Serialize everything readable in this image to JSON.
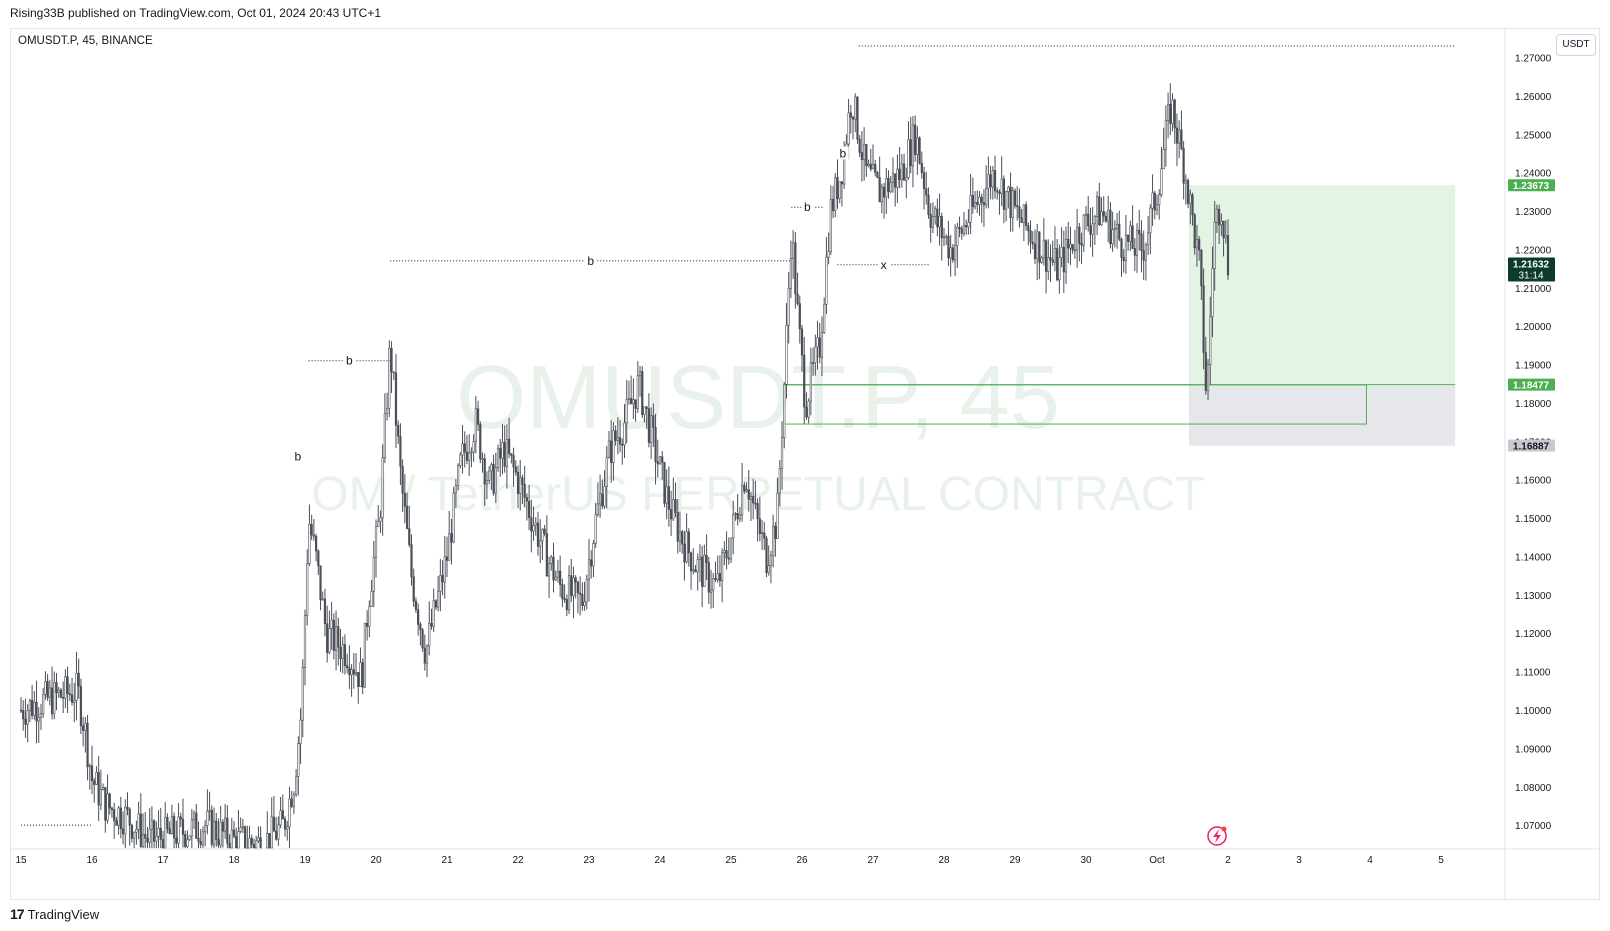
{
  "header": {
    "published": "Rising33B published on TradingView.com, Oct 01, 2024 20:43 UTC+1"
  },
  "symbol_line": "OMUSDT.P, 45, BINANCE",
  "currency_button": "USDT",
  "footer": {
    "logo_glyph": "17",
    "brand": "TradingView"
  },
  "watermark": {
    "line1": "OMUSDT.P, 45",
    "line2": "OM / TetherUS PERPETUAL CONTRACT"
  },
  "colors": {
    "candle": "#4a4e57",
    "grid_text": "#131722",
    "profit_zone": "#e4f4e4",
    "loss_zone": "#e6e7ea",
    "entry_line": "#4caf50",
    "price_badge": "#0d3b2a",
    "stop_badge": "#c7c9cd"
  },
  "chart_data": {
    "type": "candlestick",
    "title": "OMUSDT.P, 45, BINANCE",
    "x_tick_labels": [
      "15",
      "16",
      "17",
      "18",
      "19",
      "20",
      "21",
      "22",
      "23",
      "24",
      "25",
      "26",
      "27",
      "28",
      "29",
      "30",
      "Oct",
      "2",
      "3",
      "4",
      "5"
    ],
    "y_tick_labels": [
      "1.27000",
      "1.26000",
      "1.25000",
      "1.24000",
      "1.23000",
      "1.22000",
      "1.21000",
      "1.20000",
      "1.19000",
      "1.18000",
      "1.17000",
      "1.16000",
      "1.15000",
      "1.14000",
      "1.13000",
      "1.12000",
      "1.11000",
      "1.10000",
      "1.09000",
      "1.08000",
      "1.07000"
    ],
    "ylim": [
      1.063,
      1.273
    ],
    "grid": false,
    "price_path": [
      [
        15.0,
        1.1
      ],
      [
        15.4,
        1.103
      ],
      [
        15.8,
        1.105
      ],
      [
        15.9,
        1.095
      ],
      [
        16.0,
        1.082
      ],
      [
        16.2,
        1.075
      ],
      [
        16.5,
        1.072
      ],
      [
        16.8,
        1.066
      ],
      [
        17.2,
        1.068
      ],
      [
        17.6,
        1.07
      ],
      [
        18.0,
        1.066
      ],
      [
        18.4,
        1.065
      ],
      [
        18.7,
        1.07
      ],
      [
        18.85,
        1.082
      ],
      [
        18.95,
        1.1
      ],
      [
        19.05,
        1.15
      ],
      [
        19.15,
        1.14
      ],
      [
        19.3,
        1.12
      ],
      [
        19.6,
        1.115
      ],
      [
        19.8,
        1.108
      ],
      [
        19.9,
        1.13
      ],
      [
        20.05,
        1.15
      ],
      [
        20.2,
        1.195
      ],
      [
        20.35,
        1.16
      ],
      [
        20.5,
        1.135
      ],
      [
        20.7,
        1.115
      ],
      [
        21.0,
        1.14
      ],
      [
        21.2,
        1.165
      ],
      [
        21.4,
        1.175
      ],
      [
        21.6,
        1.158
      ],
      [
        21.8,
        1.168
      ],
      [
        22.0,
        1.16
      ],
      [
        22.2,
        1.15
      ],
      [
        22.4,
        1.14
      ],
      [
        22.6,
        1.132
      ],
      [
        22.9,
        1.128
      ],
      [
        23.1,
        1.15
      ],
      [
        23.3,
        1.168
      ],
      [
        23.5,
        1.175
      ],
      [
        23.7,
        1.185
      ],
      [
        23.9,
        1.17
      ],
      [
        24.1,
        1.155
      ],
      [
        24.3,
        1.145
      ],
      [
        24.5,
        1.138
      ],
      [
        24.8,
        1.132
      ],
      [
        25.0,
        1.145
      ],
      [
        25.2,
        1.162
      ],
      [
        25.35,
        1.15
      ],
      [
        25.5,
        1.14
      ],
      [
        25.65,
        1.15
      ],
      [
        25.75,
        1.185
      ],
      [
        25.85,
        1.225
      ],
      [
        25.95,
        1.2
      ],
      [
        26.05,
        1.18
      ],
      [
        26.25,
        1.195
      ],
      [
        26.4,
        1.23
      ],
      [
        26.55,
        1.24
      ],
      [
        26.7,
        1.26
      ],
      [
        26.9,
        1.24
      ],
      [
        27.1,
        1.235
      ],
      [
        27.4,
        1.24
      ],
      [
        27.6,
        1.25
      ],
      [
        27.8,
        1.23
      ],
      [
        28.1,
        1.22
      ],
      [
        28.4,
        1.23
      ],
      [
        28.7,
        1.24
      ],
      [
        29.0,
        1.23
      ],
      [
        29.3,
        1.222
      ],
      [
        29.6,
        1.215
      ],
      [
        29.9,
        1.225
      ],
      [
        30.2,
        1.23
      ],
      [
        30.5,
        1.222
      ],
      [
        30.8,
        1.22
      ],
      [
        31.0,
        1.235
      ],
      [
        31.2,
        1.258
      ],
      [
        31.4,
        1.24
      ],
      [
        31.6,
        1.215
      ],
      [
        31.7,
        1.18
      ],
      [
        31.8,
        1.225
      ],
      [
        31.9,
        1.233
      ],
      [
        32.0,
        1.2163
      ]
    ],
    "levels": [
      {
        "label": "b",
        "price": 1.191,
        "x_start": 19.05,
        "x_end": 20.2
      },
      {
        "label": "b",
        "price": 1.217,
        "x_start": 20.2,
        "x_end": 25.85
      },
      {
        "label": "b",
        "price": 1.231,
        "x_start": 25.85,
        "x_end": 26.3
      },
      {
        "label": "b",
        "price": 1.166,
        "x_start": 18.85,
        "x_end": 18.95
      },
      {
        "label": "b",
        "price": 1.245,
        "x_start": 26.55,
        "x_end": 26.6
      },
      {
        "label": "x",
        "price": 1.216,
        "x_start": 26.5,
        "x_end": 27.8
      },
      {
        "label": "",
        "price": 1.273,
        "x_start": 26.8,
        "x_end": 35.2
      },
      {
        "label": "",
        "price": 1.07,
        "x_start": 15.0,
        "x_end": 16.0
      }
    ],
    "position": {
      "entry": 1.18477,
      "target": 1.23673,
      "stop": 1.16887,
      "x_start": 31.45,
      "x_end": 35.2
    },
    "order_block": {
      "top": 1.1847,
      "bottom": 1.1745,
      "x_start": 25.75,
      "x_end": 33.95
    },
    "current_price": "1.21632",
    "countdown": "31:14",
    "entry_label": "1.18477",
    "target_label": "1.23673",
    "stop_label": "1.16887"
  }
}
